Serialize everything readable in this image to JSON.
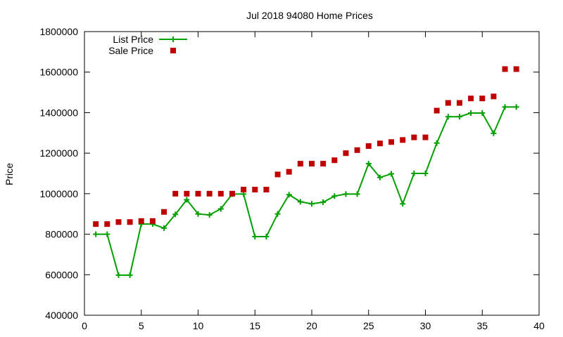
{
  "chart_data": {
    "type": "line",
    "title": "Jul 2018 94080 Home Prices",
    "xlabel": "",
    "ylabel": "Price",
    "xlim": [
      0,
      40
    ],
    "ylim": [
      400000,
      1800000
    ],
    "xticks": [
      0,
      5,
      10,
      15,
      20,
      25,
      30,
      35,
      40
    ],
    "yticks": [
      400000,
      600000,
      800000,
      1000000,
      1200000,
      1400000,
      1600000,
      1800000
    ],
    "grid": false,
    "legend_position": "top-left",
    "x": [
      1,
      2,
      3,
      4,
      5,
      6,
      7,
      8,
      9,
      10,
      11,
      12,
      13,
      14,
      15,
      16,
      17,
      18,
      19,
      20,
      21,
      22,
      23,
      24,
      25,
      26,
      27,
      28,
      29,
      30,
      31,
      32,
      33,
      34,
      35,
      36,
      37,
      38
    ],
    "series": [
      {
        "name": "List Price",
        "style": "line-plus",
        "color": "#00a000",
        "values": [
          800000,
          800000,
          598000,
          598000,
          850000,
          850000,
          830000,
          898000,
          970000,
          900000,
          895000,
          925000,
          998000,
          998000,
          788000,
          788000,
          900000,
          995000,
          960000,
          950000,
          958000,
          988000,
          998000,
          998000,
          1148000,
          1080000,
          1098000,
          950000,
          1100000,
          1100000,
          1250000,
          1380000,
          1380000,
          1398000,
          1398000,
          1298000,
          1428000,
          1428000
        ]
      },
      {
        "name": "Sale Price",
        "style": "square",
        "color": "#c00000",
        "values": [
          850000,
          850000,
          860000,
          860000,
          865000,
          865000,
          910000,
          1000000,
          1000000,
          1000000,
          1000000,
          1000000,
          1000000,
          1020000,
          1020000,
          1020000,
          1095000,
          1108000,
          1148000,
          1148000,
          1148000,
          1165000,
          1200000,
          1215000,
          1235000,
          1248000,
          1255000,
          1265000,
          1278000,
          1278000,
          1410000,
          1448000,
          1448000,
          1470000,
          1470000,
          1480000,
          1615000,
          1615000
        ]
      }
    ]
  }
}
